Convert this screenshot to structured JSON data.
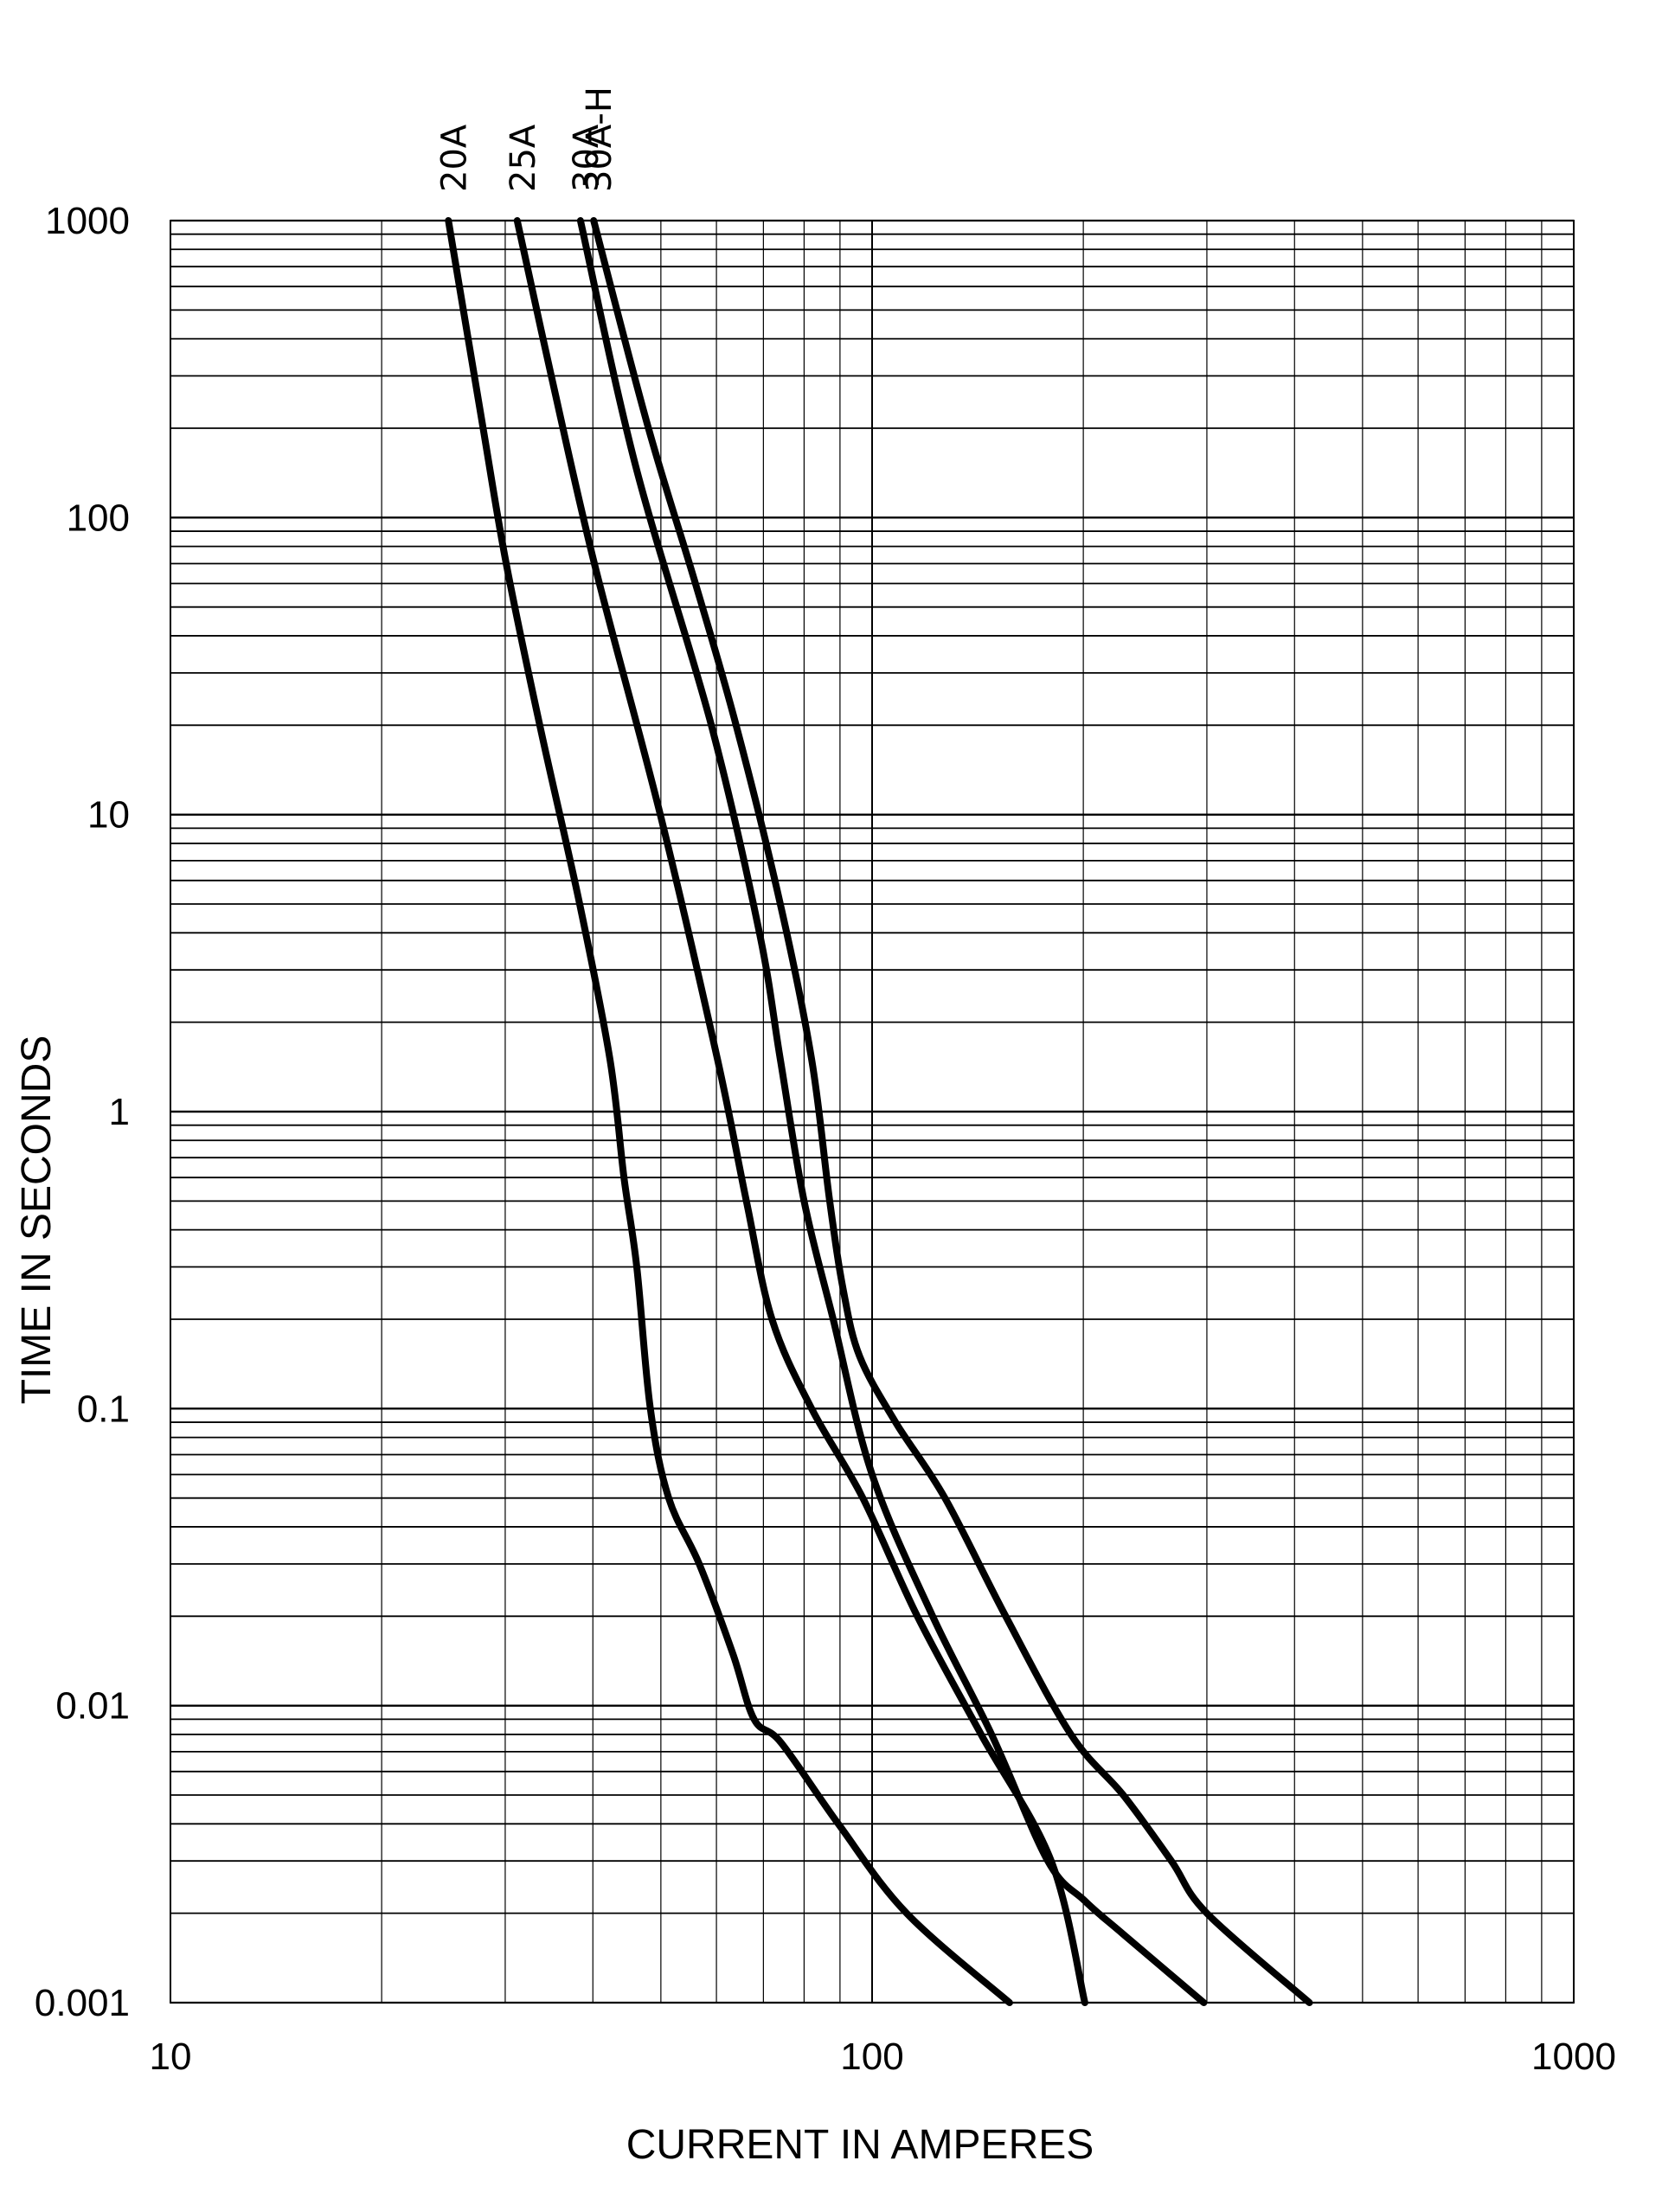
{
  "chart_data": {
    "type": "line",
    "xlabel": "CURRENT IN AMPERES",
    "ylabel": "TIME IN SECONDS",
    "x_scale": "log",
    "y_scale": "log",
    "xlim": [
      10,
      1000
    ],
    "ylim": [
      0.001,
      1000
    ],
    "x_tick_labels": [
      "10",
      "100",
      "1000"
    ],
    "y_tick_labels": [
      "0.001",
      "0.01",
      "0.1",
      "1",
      "10",
      "100",
      "1000"
    ],
    "grid": true,
    "legend": "labels above plot, rotated",
    "series": [
      {
        "name": "20A",
        "points": [
          [
            24.9,
            1000
          ],
          [
            27.9,
            200
          ],
          [
            30.1,
            70
          ],
          [
            33.6,
            20
          ],
          [
            38.3,
            5
          ],
          [
            42.3,
            1.5
          ],
          [
            44.3,
            0.6
          ],
          [
            46.2,
            0.3
          ],
          [
            48.3,
            0.1
          ],
          [
            51.3,
            0.05
          ],
          [
            56.7,
            0.03
          ],
          [
            63.3,
            0.015
          ],
          [
            67.9,
            0.009
          ],
          [
            74.2,
            0.0075
          ],
          [
            89.5,
            0.004
          ],
          [
            112,
            0.002
          ],
          [
            157,
            0.001
          ]
        ]
      },
      {
        "name": "25A",
        "points": [
          [
            31.2,
            1000
          ],
          [
            34.9,
            300
          ],
          [
            40.2,
            70
          ],
          [
            49.9,
            10
          ],
          [
            60.2,
            1.5
          ],
          [
            66.2,
            0.5
          ],
          [
            72,
            0.2
          ],
          [
            82,
            0.1
          ],
          [
            97,
            0.05
          ],
          [
            116,
            0.02
          ],
          [
            143,
            0.008
          ],
          [
            180,
            0.003
          ],
          [
            201,
            0.001
          ]
        ]
      },
      {
        "name": "30A",
        "points": [
          [
            38.4,
            1000
          ],
          [
            46,
            150
          ],
          [
            59,
            20
          ],
          [
            69.1,
            4
          ],
          [
            74,
            1.5
          ],
          [
            80,
            0.5
          ],
          [
            88,
            0.2
          ],
          [
            100,
            0.06
          ],
          [
            122,
            0.02
          ],
          [
            148,
            0.008
          ],
          [
            178,
            0.003
          ],
          [
            201,
            0.0022
          ],
          [
            228,
            0.0017
          ],
          [
            297,
            0.001
          ]
        ]
      },
      {
        "name": "30A-H",
        "points": [
          [
            40.1,
            1000
          ],
          [
            48,
            200
          ],
          [
            56,
            60
          ],
          [
            64,
            20
          ],
          [
            74,
            5
          ],
          [
            82,
            1.5
          ],
          [
            87,
            0.5
          ],
          [
            91,
            0.25
          ],
          [
            96,
            0.15
          ],
          [
            108,
            0.09
          ],
          [
            127,
            0.05
          ],
          [
            155,
            0.02
          ],
          [
            192,
            0.008
          ],
          [
            228,
            0.005
          ],
          [
            267,
            0.003
          ],
          [
            300,
            0.002
          ],
          [
            420,
            0.001
          ]
        ]
      }
    ]
  }
}
